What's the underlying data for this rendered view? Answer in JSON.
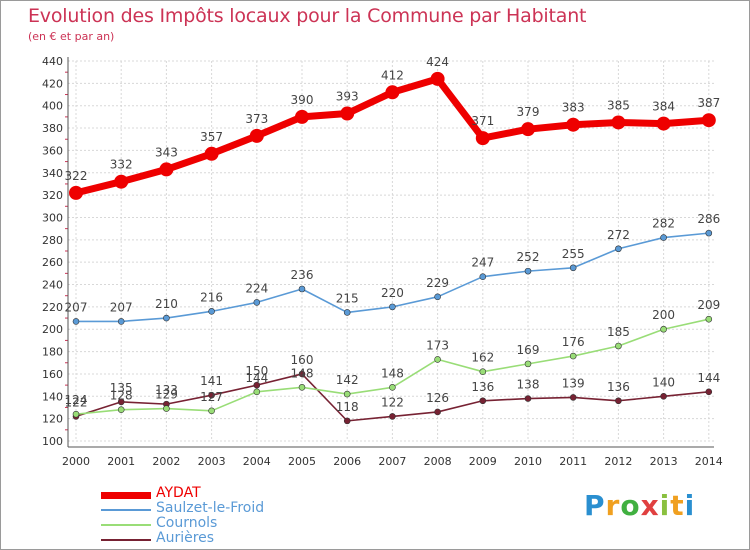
{
  "header": {
    "title": "Evolution des Impôts locaux pour la Commune par Habitant",
    "subtitle": "(en € et par an)"
  },
  "logo": {
    "letters": [
      "P",
      "r",
      "o",
      "x",
      "i",
      "t",
      "i"
    ],
    "colors": [
      "#2a8fd0",
      "#f0a020",
      "#40b040",
      "#e04040",
      "#8ac040",
      "#f0a020",
      "#2a8fd0"
    ]
  },
  "chart_data": {
    "type": "line",
    "x": [
      "2000",
      "2001",
      "2002",
      "2003",
      "2004",
      "2005",
      "2006",
      "2007",
      "2008",
      "2009",
      "2010",
      "2011",
      "2012",
      "2013",
      "2014"
    ],
    "ylim": [
      100,
      440
    ],
    "yticks": [
      100,
      120,
      140,
      160,
      180,
      200,
      220,
      240,
      260,
      280,
      300,
      320,
      340,
      360,
      380,
      400,
      420,
      440
    ],
    "grid": true,
    "legend_position": "bottom-left",
    "series": [
      {
        "name": "AYDAT",
        "color": "#ee0000",
        "values": [
          322,
          332,
          343,
          357,
          373,
          390,
          393,
          412,
          424,
          371,
          379,
          383,
          385,
          384,
          387
        ]
      },
      {
        "name": "Saulzet-le-Froid",
        "color": "#5a9ad6",
        "values": [
          207,
          207,
          210,
          216,
          224,
          236,
          215,
          220,
          229,
          247,
          252,
          255,
          272,
          282,
          286
        ]
      },
      {
        "name": "Cournols",
        "color": "#99dd77",
        "values": [
          124,
          128,
          129,
          127,
          144,
          148,
          142,
          148,
          173,
          162,
          169,
          176,
          185,
          200,
          209
        ]
      },
      {
        "name": "Aurières",
        "color": "#772233",
        "values": [
          122,
          135,
          133,
          141,
          150,
          160,
          118,
          122,
          126,
          136,
          138,
          139,
          136,
          140,
          144
        ]
      }
    ]
  }
}
